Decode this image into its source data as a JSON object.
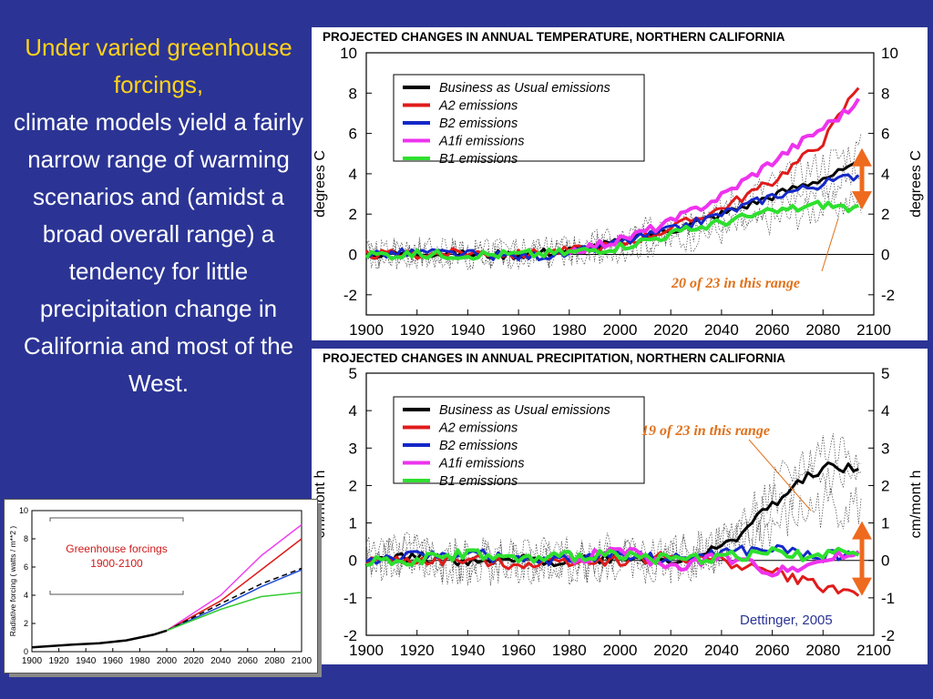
{
  "slide": {
    "lead_highlight": "Under varied greenhouse forcings,",
    "lead_body": "climate models yield a fairly narrow range of warming scenarios and (amidst a broad overall range) a tendency for little precipitation change in California and most of the West.",
    "credit": "Dettinger, 2005",
    "colors": {
      "background": "#2b3494",
      "highlight": "#ffd21a",
      "annotation": "#e0701a",
      "arrow": "#ee6a1e"
    }
  },
  "chart_data": [
    {
      "type": "line",
      "title": "PROJECTED CHANGES IN ANNUAL TEMPERATURE, NORTHERN CALIFORNIA",
      "xlabel": "",
      "ylabel": "degrees C",
      "ylabel_right": "degrees C",
      "xlim": [
        1900,
        2100
      ],
      "ylim": [
        -3,
        10
      ],
      "x_ticks": [
        "1900",
        "1920",
        "1940",
        "1960",
        "1980",
        "2000",
        "2020",
        "2040",
        "2060",
        "2080",
        "2100"
      ],
      "y_ticks": [
        "-2",
        "0",
        "2",
        "4",
        "6",
        "8",
        "10"
      ],
      "legend_position": "top-left",
      "annotation": "20 of 23 in this range",
      "range_arrow": [
        2.5,
        5.0
      ],
      "series": [
        {
          "name": "Business as Usual emissions",
          "color": "#000000",
          "x": [
            1900,
            1920,
            1940,
            1960,
            1980,
            2000,
            2020,
            2040,
            2060,
            2080,
            2095
          ],
          "values": [
            0,
            0.1,
            0,
            0,
            0.2,
            0.6,
            1.2,
            2.0,
            2.9,
            3.8,
            4.4
          ]
        },
        {
          "name": "A2 emissions",
          "color": "#e01b1b",
          "x": [
            1900,
            1920,
            1940,
            1960,
            1980,
            2000,
            2020,
            2040,
            2060,
            2080,
            2095
          ],
          "values": [
            0,
            0,
            0.1,
            0,
            0.2,
            0.5,
            1.3,
            2.3,
            3.6,
            5.6,
            8.6
          ]
        },
        {
          "name": "B2 emissions",
          "color": "#1428c8",
          "x": [
            1900,
            1920,
            1940,
            1960,
            1980,
            2000,
            2020,
            2040,
            2060,
            2080,
            2095
          ],
          "values": [
            0,
            0.1,
            0,
            -0.1,
            0,
            0.6,
            1.2,
            2.0,
            2.9,
            3.5,
            4.0
          ]
        },
        {
          "name": "A1fi emissions",
          "color": "#ee33ee",
          "x": [
            1980,
            2000,
            2020,
            2040,
            2060,
            2080,
            2095
          ],
          "values": [
            0.2,
            0.7,
            1.6,
            2.9,
            4.6,
            6.3,
            7.6
          ]
        },
        {
          "name": "B1 emissions",
          "color": "#2ee02e",
          "x": [
            1900,
            1920,
            1940,
            1960,
            1980,
            2000,
            2020,
            2040,
            2060,
            2080,
            2095
          ],
          "values": [
            0,
            0,
            0,
            0,
            0.1,
            0.4,
            1.0,
            1.6,
            2.1,
            2.5,
            2.2
          ]
        }
      ]
    },
    {
      "type": "line",
      "title": "PROJECTED CHANGES IN ANNUAL PRECIPITATION, NORTHERN CALIFORNIA",
      "xlabel": "",
      "ylabel": "cm/mont h",
      "ylabel_right": "cm/mont h",
      "xlim": [
        1900,
        2100
      ],
      "ylim": [
        -2,
        5
      ],
      "x_ticks": [
        "1900",
        "1920",
        "1940",
        "1960",
        "1980",
        "2000",
        "2020",
        "2040",
        "2060",
        "2080",
        "2100"
      ],
      "y_ticks": [
        "-2",
        "-1",
        "0",
        "1",
        "2",
        "3",
        "4",
        "5"
      ],
      "legend_position": "top-left",
      "annotation": "19 of 23 in this range",
      "range_arrow": [
        -0.8,
        0.9
      ],
      "series": [
        {
          "name": "Business as Usual emissions",
          "color": "#000000",
          "x": [
            1900,
            1920,
            1940,
            1960,
            1980,
            2000,
            2020,
            2040,
            2060,
            2080,
            2095
          ],
          "values": [
            0,
            0.1,
            -0.1,
            0,
            0,
            0.1,
            0,
            0.3,
            1.5,
            2.5,
            2.4
          ]
        },
        {
          "name": "A2 emissions",
          "color": "#e01b1b",
          "x": [
            1900,
            1920,
            1940,
            1960,
            1980,
            2000,
            2020,
            2040,
            2060,
            2080,
            2095
          ],
          "values": [
            0,
            0,
            0,
            -0.1,
            0,
            0,
            0.1,
            0,
            -0.3,
            -0.7,
            -0.9
          ]
        },
        {
          "name": "B2 emissions",
          "color": "#1428c8",
          "x": [
            1900,
            1920,
            1940,
            1960,
            1980,
            2000,
            2020,
            2040,
            2060,
            2080,
            2095
          ],
          "values": [
            0,
            0.1,
            0.2,
            0,
            0,
            0.2,
            0,
            0.2,
            0.3,
            0.1,
            0.2
          ]
        },
        {
          "name": "A1fi emissions",
          "color": "#ee33ee",
          "x": [
            1980,
            2000,
            2020,
            2040,
            2060,
            2080,
            2095
          ],
          "values": [
            0,
            0.3,
            -0.2,
            0.1,
            -0.3,
            0,
            0.2
          ]
        },
        {
          "name": "B1 emissions",
          "color": "#2ee02e",
          "x": [
            1900,
            1920,
            1940,
            1960,
            1980,
            2000,
            2020,
            2040,
            2060,
            2080,
            2095
          ],
          "values": [
            0,
            0,
            0.2,
            0,
            0.1,
            0.2,
            0,
            0.1,
            0.2,
            0.1,
            0.3
          ]
        }
      ]
    },
    {
      "type": "line",
      "title": "",
      "inset_label": "Greenhouse forcings 1900-2100",
      "xlabel": "",
      "ylabel": "Radiative forcing ( watts / m**2 )",
      "xlim": [
        1900,
        2100
      ],
      "ylim": [
        0,
        10
      ],
      "x_ticks": [
        "1900",
        "1920",
        "1940",
        "1960",
        "1980",
        "2000",
        "2020",
        "2040",
        "2060",
        "2080",
        "2100"
      ],
      "y_ticks": [
        "0",
        "2",
        "4",
        "6",
        "8",
        "10"
      ],
      "series": [
        {
          "name": "",
          "color": "#000000",
          "x": [
            1900,
            1930,
            1950,
            1970,
            1990,
            2000
          ],
          "values": [
            0.3,
            0.5,
            0.6,
            0.8,
            1.2,
            1.5
          ]
        },
        {
          "name": "",
          "color": "#ee44ee",
          "x": [
            2000,
            2040,
            2070,
            2100
          ],
          "values": [
            1.5,
            4.0,
            6.8,
            9.0
          ]
        },
        {
          "name": "",
          "color": "#e01b1b",
          "x": [
            2000,
            2040,
            2070,
            2100
          ],
          "values": [
            1.5,
            3.6,
            5.8,
            8.0
          ]
        },
        {
          "name": "",
          "color": "#1e4ed8",
          "x": [
            2000,
            2040,
            2070,
            2100
          ],
          "values": [
            1.5,
            3.2,
            4.6,
            5.8
          ]
        },
        {
          "name": "",
          "color": "#000000",
          "x": [
            2000,
            2040,
            2070,
            2100
          ],
          "values": [
            1.5,
            3.4,
            4.8,
            5.9
          ]
        },
        {
          "name": "",
          "color": "#33cc33",
          "x": [
            2000,
            2040,
            2070,
            2100
          ],
          "values": [
            1.5,
            3.0,
            3.9,
            4.2
          ]
        }
      ]
    }
  ]
}
